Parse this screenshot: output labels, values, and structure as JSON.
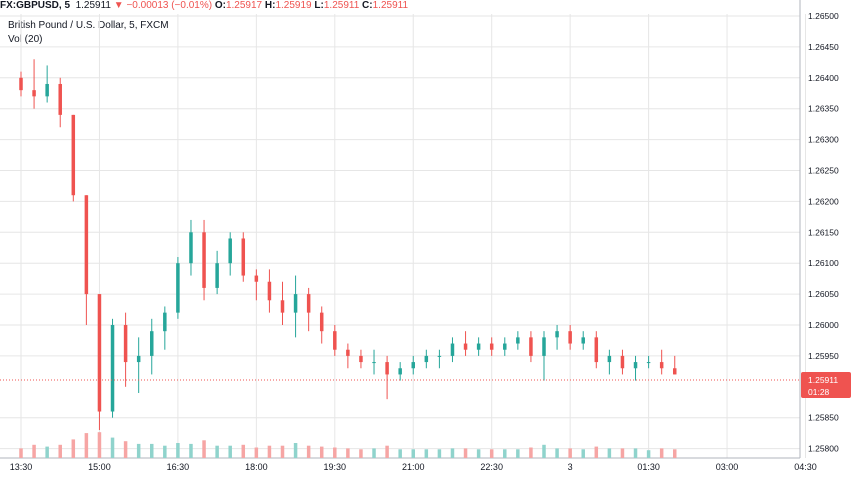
{
  "header": {
    "symbol": "FX:GBPUSD, 5",
    "last": "1.25911",
    "change": "−0.00013 (−0.01%)",
    "o_label": "O:",
    "o_val": "1.25917",
    "h_label": "H:",
    "h_val": "1.25919",
    "l_label": "L:",
    "l_val": "1.25911",
    "c_label": "C:",
    "c_val": "1.25911"
  },
  "legend": {
    "instrument": "British Pound / U.S. Dollar, 5, FXCM",
    "volume": "Vol (20)"
  },
  "price_axis": {
    "ticks": [
      "1.26500",
      "1.26450",
      "1.26400",
      "1.26350",
      "1.26300",
      "1.26250",
      "1.26200",
      "1.26150",
      "1.26100",
      "1.26050",
      "1.26000",
      "1.25950",
      "1.25911",
      "1.25850",
      "1.25800"
    ],
    "current_price": "1.25911",
    "countdown": "01:28"
  },
  "time_axis": {
    "ticks": [
      "13:30",
      "15:00",
      "16:30",
      "18:00",
      "19:30",
      "21:00",
      "22:30",
      "3",
      "01:30",
      "03:00",
      "04:30"
    ]
  },
  "colors": {
    "up": "#26a69a",
    "down": "#ef5350",
    "vol_up": "#8fd3cc",
    "vol_down": "#f6a5a4",
    "grid": "#e6e6e6",
    "price_line": "#ef5350"
  },
  "chart_data": {
    "type": "candlestick",
    "title": "British Pound / U.S. Dollar, 5, FXCM",
    "ylim": [
      1.2577,
      1.2651
    ],
    "grid": true,
    "ohlc_bars": [
      [
        13.5,
        1.264,
        1.2641,
        1.2637,
        1.2638
      ],
      [
        13.75,
        1.2638,
        1.2643,
        1.2635,
        1.2637
      ],
      [
        14.0,
        1.2637,
        1.2642,
        1.2636,
        1.2639
      ],
      [
        14.25,
        1.2639,
        1.264,
        1.2632,
        1.2634
      ],
      [
        14.5,
        1.2634,
        1.2634,
        1.262,
        1.2621
      ],
      [
        14.75,
        1.2621,
        1.2621,
        1.26,
        1.2605
      ],
      [
        15.0,
        1.2605,
        1.2605,
        1.2583,
        1.2586
      ],
      [
        15.25,
        1.2586,
        1.2601,
        1.2585,
        1.26
      ],
      [
        15.5,
        1.26,
        1.2602,
        1.259,
        1.2594
      ],
      [
        15.75,
        1.2594,
        1.2598,
        1.2589,
        1.2595
      ],
      [
        16.0,
        1.2595,
        1.2601,
        1.2592,
        1.2599
      ],
      [
        16.25,
        1.2599,
        1.2603,
        1.2596,
        1.2602
      ],
      [
        16.5,
        1.2602,
        1.2611,
        1.2601,
        1.261
      ],
      [
        16.75,
        1.261,
        1.2617,
        1.2608,
        1.2615
      ],
      [
        17.0,
        1.2615,
        1.2617,
        1.2604,
        1.2606
      ],
      [
        17.25,
        1.2606,
        1.2612,
        1.2605,
        1.261
      ],
      [
        17.5,
        1.261,
        1.2615,
        1.2608,
        1.2614
      ],
      [
        17.75,
        1.2614,
        1.2615,
        1.2607,
        1.2608
      ],
      [
        18.0,
        1.2608,
        1.2609,
        1.2604,
        1.2607
      ],
      [
        18.25,
        1.2607,
        1.2609,
        1.2602,
        1.2604
      ],
      [
        18.5,
        1.2604,
        1.2607,
        1.26,
        1.2602
      ],
      [
        18.75,
        1.2602,
        1.2608,
        1.2598,
        1.2605
      ],
      [
        19.0,
        1.2605,
        1.2606,
        1.2599,
        1.2602
      ],
      [
        19.25,
        1.2602,
        1.2603,
        1.2597,
        1.2599
      ],
      [
        19.5,
        1.2599,
        1.26,
        1.2595,
        1.2596
      ],
      [
        19.75,
        1.2596,
        1.2597,
        1.2593,
        1.2595
      ],
      [
        20.0,
        1.2595,
        1.2596,
        1.2593,
        1.2594
      ],
      [
        20.25,
        1.2594,
        1.2596,
        1.2592,
        1.2594
      ],
      [
        20.5,
        1.2594,
        1.2595,
        1.2588,
        1.2592
      ],
      [
        20.75,
        1.2592,
        1.2594,
        1.2591,
        1.2593
      ],
      [
        21.0,
        1.2593,
        1.2595,
        1.2592,
        1.2594
      ],
      [
        21.25,
        1.2594,
        1.2596,
        1.2593,
        1.2595
      ],
      [
        21.5,
        1.2595,
        1.2596,
        1.2593,
        1.2595
      ],
      [
        21.75,
        1.2595,
        1.2598,
        1.2594,
        1.2597
      ],
      [
        22.0,
        1.2597,
        1.2599,
        1.2595,
        1.2596
      ],
      [
        22.25,
        1.2596,
        1.2598,
        1.2595,
        1.2597
      ],
      [
        22.5,
        1.2597,
        1.2598,
        1.2595,
        1.2596
      ],
      [
        22.75,
        1.2596,
        1.2598,
        1.2595,
        1.2597
      ],
      [
        23.0,
        1.2597,
        1.2599,
        1.2596,
        1.2598
      ],
      [
        23.25,
        1.2598,
        1.2599,
        1.2594,
        1.2595
      ],
      [
        23.5,
        1.2595,
        1.2599,
        1.2591,
        1.2598
      ],
      [
        23.75,
        1.2598,
        1.26,
        1.2596,
        1.2599
      ],
      [
        24.0,
        1.2599,
        1.26,
        1.2596,
        1.2597
      ],
      [
        24.25,
        1.2597,
        1.2599,
        1.2596,
        1.2598
      ],
      [
        24.5,
        1.2598,
        1.2599,
        1.2593,
        1.2594
      ],
      [
        24.75,
        1.2594,
        1.2596,
        1.2592,
        1.2595
      ],
      [
        25.0,
        1.2595,
        1.2596,
        1.2592,
        1.2593
      ],
      [
        25.25,
        1.2593,
        1.2595,
        1.2591,
        1.2594
      ],
      [
        25.5,
        1.2594,
        1.2595,
        1.2593,
        1.2594
      ],
      [
        25.75,
        1.2594,
        1.2596,
        1.2592,
        1.2593
      ],
      [
        26.0,
        1.2593,
        1.2595,
        1.2592,
        1.2592
      ]
    ]
  }
}
